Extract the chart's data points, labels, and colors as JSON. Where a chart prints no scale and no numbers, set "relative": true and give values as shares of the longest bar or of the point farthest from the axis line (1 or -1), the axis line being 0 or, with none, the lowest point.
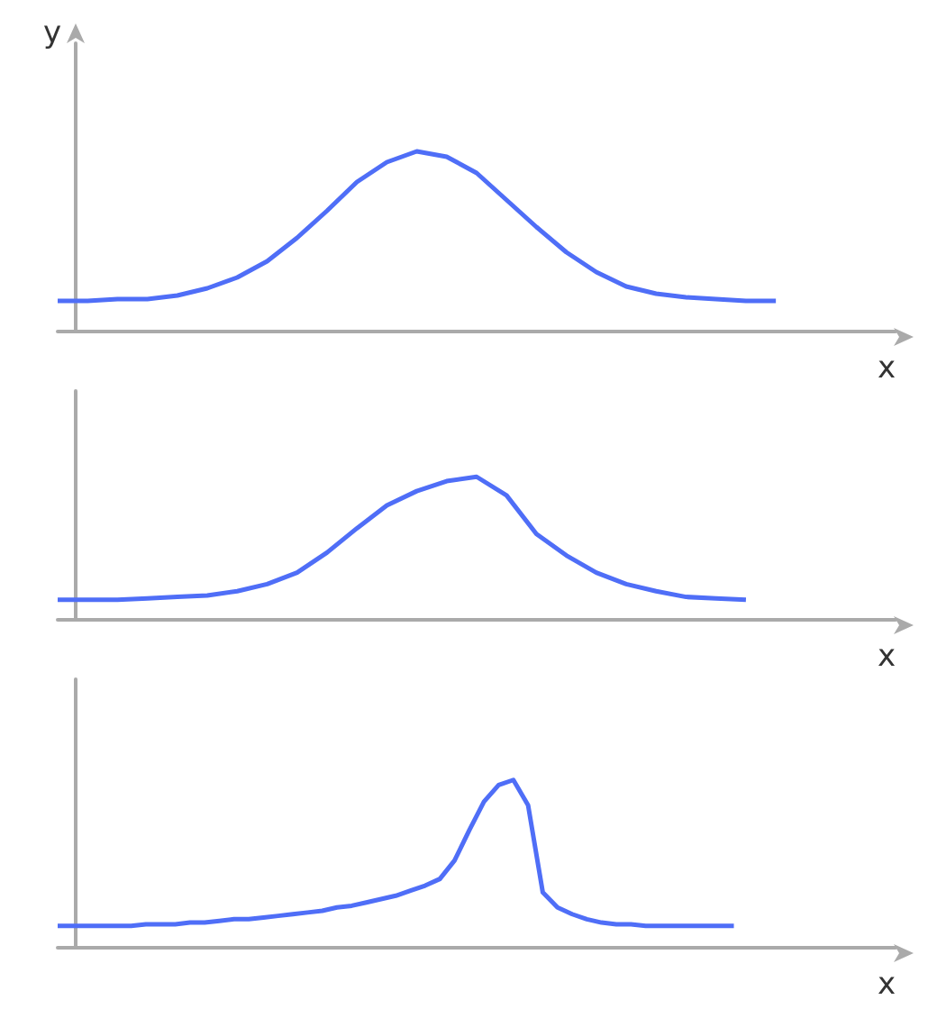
{
  "chart_data": [
    {
      "type": "line",
      "relative": true,
      "ylabel": "y",
      "xlabel": "x",
      "categories": [
        null,
        null,
        null,
        null,
        null,
        null,
        null,
        null,
        null,
        null,
        null,
        null,
        null,
        null,
        null,
        null,
        null,
        null,
        null,
        null,
        null,
        null,
        null,
        null,
        null,
        null,
        null,
        null,
        null
      ],
      "series": [
        {
          "color": "#4f6ef7",
          "values": [
            0.17,
            0.17,
            0.18,
            0.18,
            0.2,
            0.24,
            0.3,
            0.39,
            0.52,
            0.67,
            0.83,
            0.94,
            1.0,
            0.97,
            0.88,
            0.73,
            0.58,
            0.44,
            0.33,
            0.25,
            0.21,
            0.19,
            0.18,
            0.17,
            0.17,
            null,
            null,
            null,
            null
          ]
        }
      ]
    },
    {
      "type": "line",
      "relative": true,
      "xlabel": "x",
      "categories": [
        null,
        null,
        null,
        null,
        null,
        null,
        null,
        null,
        null,
        null,
        null,
        null,
        null,
        null,
        null,
        null,
        null,
        null,
        null,
        null,
        null,
        null,
        null,
        null,
        null,
        null,
        null,
        null,
        null
      ],
      "series": [
        {
          "color": "#4f6ef7",
          "values": [
            0.14,
            0.14,
            0.14,
            0.15,
            0.16,
            0.17,
            0.2,
            0.25,
            0.33,
            0.47,
            0.64,
            0.8,
            0.9,
            0.97,
            1.0,
            0.87,
            0.6,
            0.45,
            0.33,
            0.25,
            0.2,
            0.16,
            0.15,
            0.14,
            null,
            null,
            null,
            null,
            null
          ]
        }
      ]
    },
    {
      "type": "line",
      "relative": true,
      "xlabel": "x",
      "categories": [
        null,
        null,
        null,
        null,
        null,
        null,
        null,
        null,
        null,
        null,
        null,
        null,
        null,
        null,
        null,
        null,
        null,
        null,
        null,
        null,
        null,
        null,
        null,
        null,
        null,
        null,
        null,
        null,
        null,
        null,
        null,
        null,
        null,
        null,
        null,
        null,
        null,
        null,
        null,
        null,
        null,
        null,
        null,
        null,
        null,
        null,
        null,
        null,
        null,
        null,
        null,
        null,
        null,
        null,
        null,
        null,
        null,
        null
      ],
      "series": [
        {
          "color": "#4f6ef7",
          "values": [
            0.13,
            0.13,
            0.13,
            0.13,
            0.13,
            0.13,
            0.14,
            0.14,
            0.14,
            0.15,
            0.15,
            0.16,
            0.17,
            0.17,
            0.18,
            0.19,
            0.2,
            0.21,
            0.22,
            0.24,
            0.25,
            0.27,
            0.29,
            0.31,
            0.34,
            0.37,
            0.41,
            0.52,
            0.7,
            0.87,
            0.97,
            1.0,
            0.85,
            0.33,
            0.24,
            0.2,
            0.17,
            0.15,
            0.14,
            0.14,
            0.13,
            0.13,
            0.13,
            0.13,
            0.13,
            0.13,
            0.13,
            null,
            null,
            null,
            null,
            null,
            null,
            null,
            null,
            null,
            null,
            null
          ]
        }
      ]
    }
  ]
}
